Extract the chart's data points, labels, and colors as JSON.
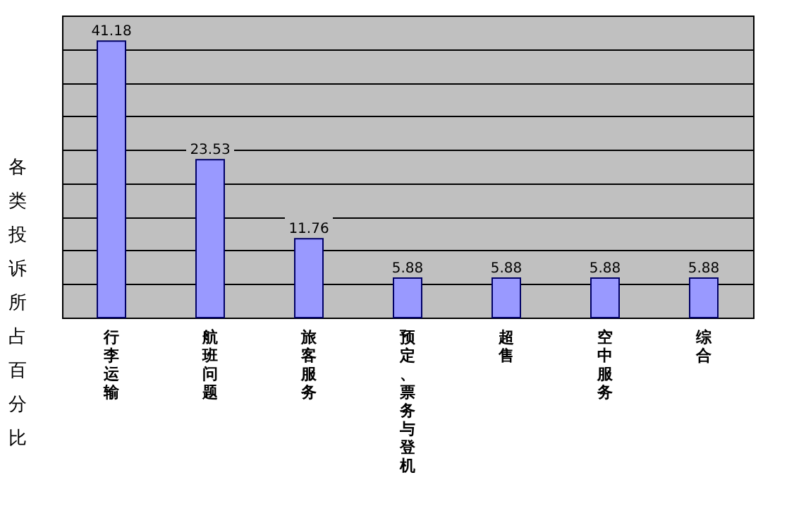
{
  "chart_data": {
    "type": "bar",
    "ylabel": "各类投诉所占百分比",
    "categories": [
      "行李运输",
      "航班问题",
      "旅客服务",
      "预定、票务与登机",
      "超售",
      "空中服务",
      "综合"
    ],
    "values": [
      41.18,
      23.53,
      11.76,
      5.88,
      5.88,
      5.88,
      5.88
    ],
    "color": "#9999ff",
    "ylim": [
      0,
      45
    ],
    "yticks": [
      {
        "value": 0,
        "label": null
      },
      {
        "value": 5,
        "label": null
      },
      {
        "value": 10,
        "label": null
      },
      {
        "value": 15,
        "label": null
      },
      {
        "value": 20,
        "label": null
      },
      {
        "value": 25,
        "label": null
      },
      {
        "value": 30,
        "label": null
      },
      {
        "value": 35,
        "label": null
      },
      {
        "value": 40,
        "label": null
      },
      {
        "value": 45,
        "label": null
      }
    ],
    "grid": "y",
    "tick_labels": "x",
    "data_labels": true
  }
}
